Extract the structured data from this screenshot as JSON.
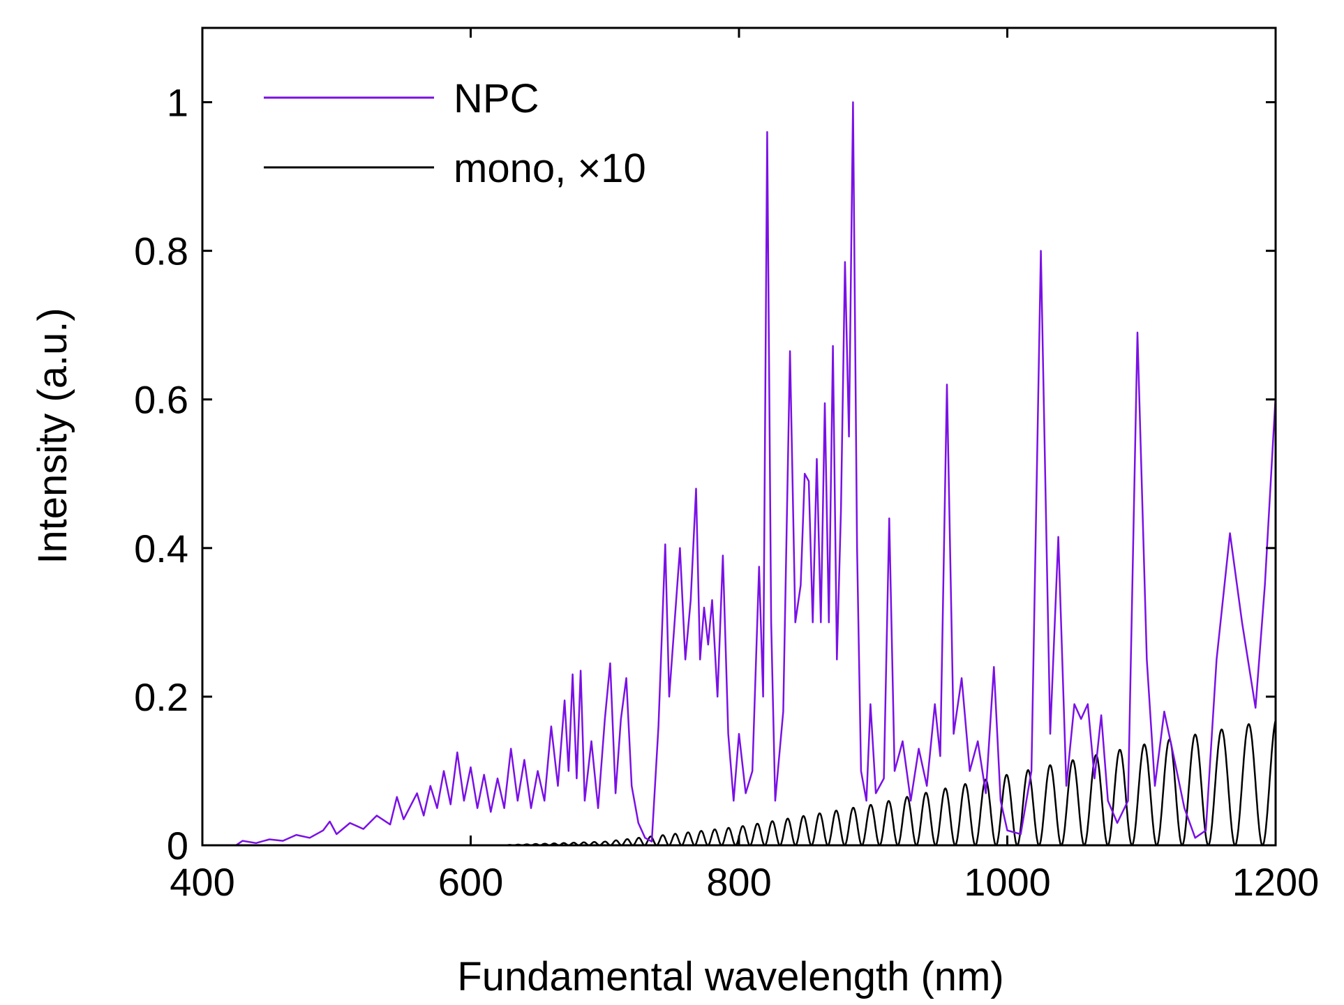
{
  "chart_data": {
    "type": "line",
    "xlabel": "Fundamental wavelength (nm)",
    "ylabel": "Intensity (a.u.)",
    "xlim": [
      400,
      1200
    ],
    "ylim": [
      0,
      1.1
    ],
    "x_ticks": [
      400,
      600,
      800,
      1000,
      1200
    ],
    "x_tick_labels": [
      "400",
      "600",
      "800",
      "1000",
      "1200"
    ],
    "y_ticks": [
      0,
      0.2,
      0.4,
      0.6,
      0.8,
      1
    ],
    "y_tick_labels": [
      "0",
      "0.2",
      "0.4",
      "0.6",
      "0.8",
      "1"
    ],
    "grid": false,
    "legend_position": "top-left",
    "series": [
      {
        "name": "NPC",
        "color": "#7a10e6",
        "points": [
          [
            400,
            0
          ],
          [
            425,
            0
          ],
          [
            430,
            0.006
          ],
          [
            440,
            0.003
          ],
          [
            450,
            0.008
          ],
          [
            460,
            0.006
          ],
          [
            470,
            0.014
          ],
          [
            480,
            0.01
          ],
          [
            490,
            0.02
          ],
          [
            495,
            0.032
          ],
          [
            500,
            0.015
          ],
          [
            510,
            0.03
          ],
          [
            520,
            0.022
          ],
          [
            530,
            0.04
          ],
          [
            540,
            0.028
          ],
          [
            545,
            0.065
          ],
          [
            550,
            0.035
          ],
          [
            560,
            0.07
          ],
          [
            565,
            0.04
          ],
          [
            570,
            0.08
          ],
          [
            575,
            0.05
          ],
          [
            580,
            0.1
          ],
          [
            585,
            0.055
          ],
          [
            590,
            0.125
          ],
          [
            595,
            0.06
          ],
          [
            600,
            0.105
          ],
          [
            605,
            0.05
          ],
          [
            610,
            0.095
          ],
          [
            615,
            0.045
          ],
          [
            620,
            0.09
          ],
          [
            625,
            0.05
          ],
          [
            630,
            0.13
          ],
          [
            635,
            0.06
          ],
          [
            640,
            0.115
          ],
          [
            645,
            0.05
          ],
          [
            650,
            0.1
          ],
          [
            655,
            0.06
          ],
          [
            660,
            0.16
          ],
          [
            665,
            0.08
          ],
          [
            670,
            0.195
          ],
          [
            673,
            0.1
          ],
          [
            676,
            0.23
          ],
          [
            679,
            0.09
          ],
          [
            682,
            0.235
          ],
          [
            685,
            0.06
          ],
          [
            690,
            0.14
          ],
          [
            695,
            0.05
          ],
          [
            700,
            0.17
          ],
          [
            704,
            0.245
          ],
          [
            708,
            0.07
          ],
          [
            712,
            0.17
          ],
          [
            716,
            0.225
          ],
          [
            720,
            0.08
          ],
          [
            725,
            0.03
          ],
          [
            730,
            0.01
          ],
          [
            735,
            0.005
          ],
          [
            740,
            0.16
          ],
          [
            745,
            0.405
          ],
          [
            748,
            0.2
          ],
          [
            752,
            0.3
          ],
          [
            756,
            0.4
          ],
          [
            760,
            0.25
          ],
          [
            764,
            0.33
          ],
          [
            768,
            0.48
          ],
          [
            771,
            0.25
          ],
          [
            774,
            0.32
          ],
          [
            777,
            0.27
          ],
          [
            780,
            0.33
          ],
          [
            784,
            0.2
          ],
          [
            788,
            0.39
          ],
          [
            792,
            0.15
          ],
          [
            796,
            0.06
          ],
          [
            800,
            0.15
          ],
          [
            805,
            0.07
          ],
          [
            810,
            0.1
          ],
          [
            815,
            0.375
          ],
          [
            818,
            0.2
          ],
          [
            821,
            0.96
          ],
          [
            824,
            0.3
          ],
          [
            827,
            0.06
          ],
          [
            833,
            0.18
          ],
          [
            838,
            0.665
          ],
          [
            842,
            0.3
          ],
          [
            846,
            0.35
          ],
          [
            849,
            0.5
          ],
          [
            852,
            0.49
          ],
          [
            855,
            0.3
          ],
          [
            858,
            0.52
          ],
          [
            861,
            0.3
          ],
          [
            864,
            0.595
          ],
          [
            867,
            0.3
          ],
          [
            870,
            0.672
          ],
          [
            873,
            0.25
          ],
          [
            876,
            0.45
          ],
          [
            879,
            0.785
          ],
          [
            882,
            0.55
          ],
          [
            885,
            1.0
          ],
          [
            888,
            0.4
          ],
          [
            891,
            0.1
          ],
          [
            895,
            0.06
          ],
          [
            898,
            0.19
          ],
          [
            902,
            0.07
          ],
          [
            908,
            0.09
          ],
          [
            912,
            0.44
          ],
          [
            916,
            0.1
          ],
          [
            922,
            0.14
          ],
          [
            928,
            0.06
          ],
          [
            934,
            0.13
          ],
          [
            940,
            0.08
          ],
          [
            946,
            0.19
          ],
          [
            950,
            0.12
          ],
          [
            955,
            0.62
          ],
          [
            960,
            0.15
          ],
          [
            966,
            0.225
          ],
          [
            972,
            0.1
          ],
          [
            978,
            0.14
          ],
          [
            984,
            0.07
          ],
          [
            990,
            0.24
          ],
          [
            995,
            0.06
          ],
          [
            1000,
            0.02
          ],
          [
            1010,
            0.015
          ],
          [
            1018,
            0.1
          ],
          [
            1025,
            0.8
          ],
          [
            1032,
            0.15
          ],
          [
            1038,
            0.415
          ],
          [
            1044,
            0.08
          ],
          [
            1050,
            0.19
          ],
          [
            1055,
            0.17
          ],
          [
            1060,
            0.19
          ],
          [
            1065,
            0.09
          ],
          [
            1070,
            0.175
          ],
          [
            1075,
            0.06
          ],
          [
            1082,
            0.03
          ],
          [
            1090,
            0.06
          ],
          [
            1097,
            0.69
          ],
          [
            1104,
            0.25
          ],
          [
            1110,
            0.08
          ],
          [
            1117,
            0.18
          ],
          [
            1124,
            0.12
          ],
          [
            1132,
            0.05
          ],
          [
            1140,
            0.01
          ],
          [
            1148,
            0.02
          ],
          [
            1156,
            0.25
          ],
          [
            1166,
            0.42
          ],
          [
            1175,
            0.3
          ],
          [
            1185,
            0.185
          ],
          [
            1192,
            0.35
          ],
          [
            1200,
            0.605
          ]
        ]
      },
      {
        "name": "mono, ×10",
        "color": "#000000",
        "points": [
          [
            620,
            0
          ],
          [
            700,
            0.005
          ],
          [
            800,
            0.025
          ],
          [
            900,
            0.055
          ],
          [
            1000,
            0.095
          ],
          [
            1100,
            0.135
          ],
          [
            1200,
            0.17
          ]
        ],
        "oscillation": {
          "start_x": 620,
          "period_start": 6,
          "period_end": 21
        }
      }
    ]
  }
}
